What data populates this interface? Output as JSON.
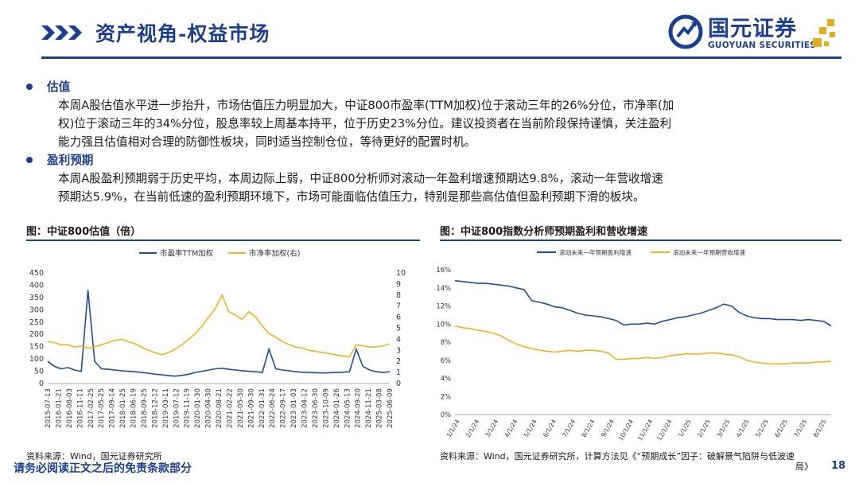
{
  "header": {
    "title": "资产视角-权益市场",
    "logo_cn": "国元证券",
    "logo_en": "GUOYUAN SECURITIES",
    "accent": "#1d3f8f",
    "logo_gold": "#e3ae1e"
  },
  "sections": [
    {
      "heading": "估值",
      "lines": [
        "本周A股估值水平进一步抬升，市场估值压力明显加大，中证800市盈率(TTM加权)位于滚动三年的26%分位，市净率(加",
        "权)位于滚动三年的34%分位，股息率较上周基本持平，位于历史23%分位。建议投资者在当前阶段保持谨慎，关注盈利",
        "能力强且估值相对合理的防御性板块，同时适当控制仓位，等待更好的配置时机。"
      ]
    },
    {
      "heading": "盈利预期",
      "lines": [
        "本周A股盈利预期弱于历史平均，本周边际上弱，中证800分析师对滚动一年盈利增速预期达9.8%，滚动一年营收增速",
        "预期达5.9%，在当前低速的盈利预期环境下，市场可能面临估值压力，特别是那些高估值但盈利预期下滑的板块。"
      ]
    }
  ],
  "figure_left": {
    "caption": "图：中证800估值（倍）",
    "source": "资料来源：Wind，国元证券研究所"
  },
  "figure_right": {
    "caption": "图：中证800指数分析师预期盈利和营收增速",
    "source_line1": "资料来源：Wind，国元证券研究所，计算方法见《“预期成长”因子：破解景气陷阱与低波速",
    "source_line2": "局》"
  },
  "chart_data": [
    {
      "type": "line",
      "series": [
        {
          "name": "市盈率TTM加权",
          "axis": "left",
          "color": "#1f4e9c",
          "values": [
            90,
            70,
            60,
            65,
            55,
            50,
            380,
            90,
            60,
            58,
            55,
            52,
            50,
            48,
            45,
            42,
            38,
            36,
            32,
            30,
            33,
            38,
            45,
            50,
            55,
            60,
            62,
            58,
            55,
            52,
            50,
            48,
            45,
            140,
            60,
            55,
            52,
            48,
            46,
            45,
            44,
            43,
            44,
            45,
            46,
            48,
            140,
            70,
            55,
            48,
            45,
            48
          ]
        },
        {
          "name": "市净率加权(右)",
          "axis": "right",
          "color": "#f0b323",
          "values": [
            3.8,
            3.7,
            3.5,
            3.5,
            3.3,
            3.4,
            3.2,
            3.3,
            3.5,
            3.7,
            3.9,
            4.0,
            3.8,
            3.6,
            3.3,
            3.0,
            2.8,
            2.6,
            2.8,
            3.1,
            3.5,
            4.0,
            4.5,
            5.2,
            6.0,
            6.8,
            8.0,
            6.5,
            6.2,
            5.8,
            6.5,
            6.0,
            5.2,
            4.5,
            4.2,
            3.8,
            3.5,
            3.3,
            3.2,
            3.0,
            2.9,
            2.8,
            2.7,
            2.6,
            2.5,
            2.4,
            3.5,
            3.4,
            3.3,
            3.3,
            3.4,
            3.6
          ]
        }
      ],
      "x_labels": [
        "2015-07-13",
        "2016-01-21",
        "2016-08-03",
        "2016-11-11",
        "2017-02-25",
        "2017-05-25",
        "2017-09-14",
        "2018-01-25",
        "2018-06-19",
        "2018-09-25",
        "2018-12-12",
        "2019-03-11",
        "2019-07-12",
        "2019-11-19",
        "2020-01-30",
        "2020-04-30",
        "2020-08-21",
        "2021-02-22",
        "2021-05-30",
        "2021-09-30",
        "2022-01-31",
        "2022-06-24",
        "2022-09-17",
        "2023-01-03",
        "2023-04-12",
        "2023-06-30",
        "2023-10-09",
        "2024-01-26",
        "2024-05-13",
        "2024-09-20",
        "2024-11-21",
        "2025-03-08",
        "2025-06-09"
      ],
      "y_left_ticks": [
        0,
        50,
        100,
        150,
        200,
        250,
        300,
        350,
        400,
        450
      ],
      "y_right_ticks": [
        0,
        1,
        2,
        3,
        4,
        5,
        6,
        7,
        8,
        9,
        10
      ],
      "ylim_left": [
        0,
        450
      ],
      "ylim_right": [
        0,
        10
      ],
      "legend": "top"
    },
    {
      "type": "line",
      "series": [
        {
          "name": "滚动未来一年预期盈利增速",
          "color": "#1f4e9c",
          "values": [
            14.8,
            14.7,
            14.6,
            14.5,
            14.5,
            14.4,
            14.3,
            14.2,
            14.0,
            13.8,
            12.6,
            12.4,
            12.2,
            11.9,
            11.8,
            11.5,
            11.2,
            11.0,
            10.9,
            10.8,
            10.6,
            10.4,
            9.9,
            10.0,
            10.0,
            10.1,
            10.0,
            10.3,
            10.5,
            10.7,
            10.8,
            11.0,
            11.2,
            11.5,
            11.8,
            12.2,
            12.0,
            11.3,
            10.9,
            10.7,
            10.6,
            10.6,
            10.5,
            10.5,
            10.5,
            10.4,
            10.5,
            10.4,
            10.3,
            9.8
          ]
        },
        {
          "name": "滚动未来一年预期营收增速",
          "color": "#f0b323",
          "values": [
            9.8,
            9.6,
            9.5,
            9.3,
            9.2,
            9.0,
            8.7,
            8.2,
            7.8,
            7.5,
            7.3,
            7.1,
            7.0,
            6.9,
            7.0,
            7.1,
            7.0,
            7.1,
            7.1,
            7.0,
            6.8,
            6.1,
            6.1,
            6.2,
            6.2,
            6.3,
            6.2,
            6.3,
            6.5,
            6.6,
            6.7,
            6.7,
            6.7,
            6.8,
            6.8,
            6.7,
            6.6,
            6.4,
            6.0,
            5.8,
            5.7,
            5.6,
            5.6,
            5.6,
            5.7,
            5.7,
            5.7,
            5.8,
            5.8,
            5.9
          ]
        }
      ],
      "x_labels": [
        "1/1/24",
        "2/1/24",
        "3/1/24",
        "4/1/24",
        "5/1/24",
        "6/1/24",
        "7/1/24",
        "8/1/24",
        "9/1/24",
        "10/1/24",
        "11/1/24",
        "12/1/24",
        "1/1/25",
        "2/1/25",
        "3/1/25",
        "4/1/25",
        "5/1/25",
        "6/1/25",
        "7/1/25",
        "8/1/25"
      ],
      "y_ticks": [
        "0%",
        "2%",
        "4%",
        "6%",
        "8%",
        "10%",
        "12%",
        "14%",
        "16%"
      ],
      "ylim": [
        0,
        16
      ],
      "legend": "top"
    }
  ],
  "footer": {
    "disclaimer": "请务必阅读正文之后的免责条款部分",
    "page": "18"
  }
}
